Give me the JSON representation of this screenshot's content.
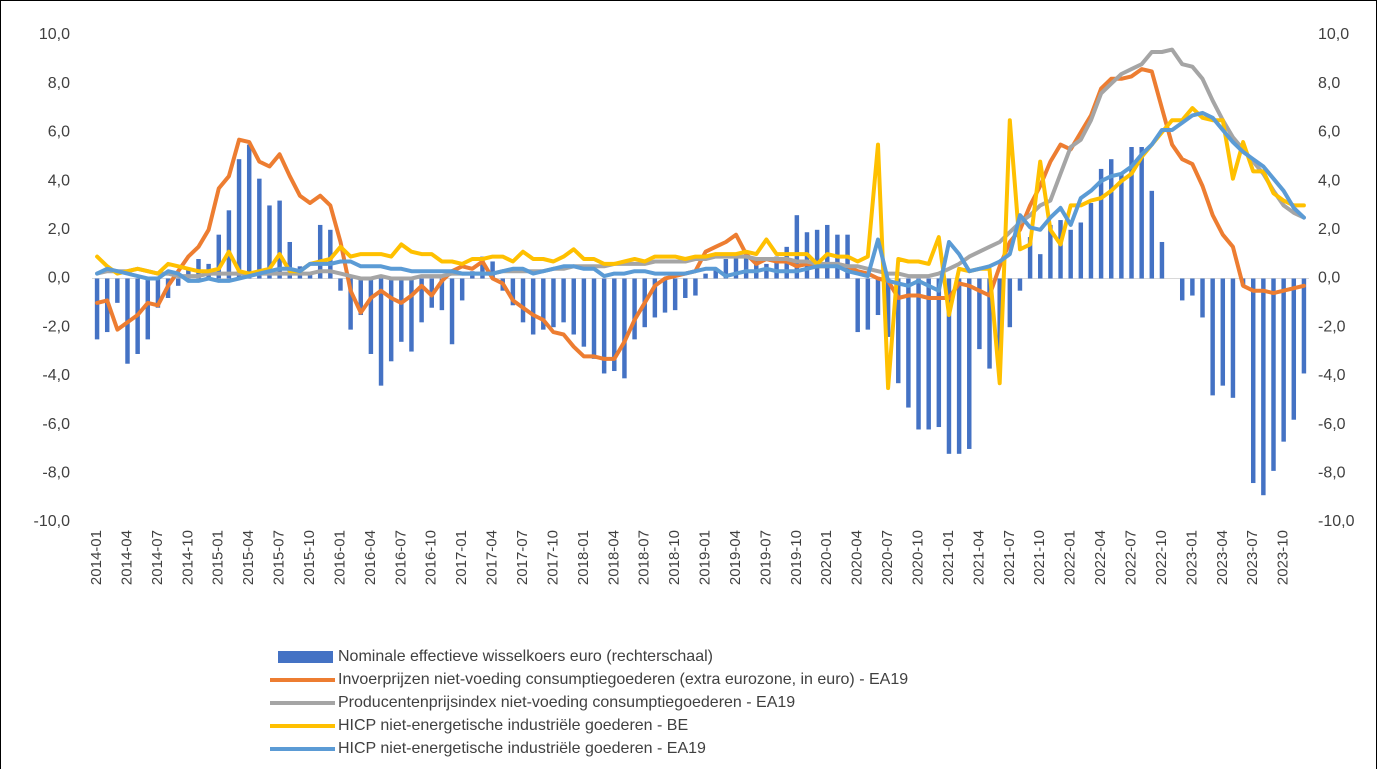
{
  "chart_data": {
    "type": "bar-line",
    "categories": [
      "2014-01",
      null,
      null,
      "2014-04",
      null,
      null,
      "2014-07",
      null,
      null,
      "2014-10",
      null,
      null,
      "2015-01",
      null,
      null,
      "2015-04",
      null,
      null,
      "2015-07",
      null,
      null,
      "2015-10",
      null,
      null,
      "2016-01",
      null,
      null,
      "2016-04",
      null,
      null,
      "2016-07",
      null,
      null,
      "2016-10",
      null,
      null,
      "2017-01",
      null,
      null,
      "2017-04",
      null,
      null,
      "2017-07",
      null,
      null,
      "2017-10",
      null,
      null,
      "2018-01",
      null,
      null,
      "2018-04",
      null,
      null,
      "2018-07",
      null,
      null,
      "2018-10",
      null,
      null,
      "2019-01",
      null,
      null,
      "2019-04",
      null,
      null,
      "2019-07",
      null,
      null,
      "2019-10",
      null,
      null,
      "2020-01",
      null,
      null,
      "2020-04",
      null,
      null,
      "2020-07",
      null,
      null,
      "2020-10",
      null,
      null,
      "2021-01",
      null,
      null,
      "2021-04",
      null,
      null,
      "2021-07",
      null,
      null,
      "2021-10",
      null,
      null,
      "2022-01",
      null,
      null,
      "2022-04",
      null,
      null,
      "2022-07",
      null,
      null,
      "2022-10",
      null,
      null,
      "2023-01",
      null,
      null,
      "2023-04",
      null,
      null,
      "2023-07",
      null,
      null,
      "2023-10",
      null,
      null
    ],
    "series": [
      {
        "name": "Nominale effectieve wisselkoers euro (rechterschaal)",
        "kind": "bar",
        "axis": "y2",
        "color": "#4472c4",
        "values": [
          -2.5,
          -2.2,
          -1.0,
          -3.5,
          -3.1,
          -2.5,
          -1.2,
          -0.8,
          -0.3,
          0.4,
          0.8,
          0.6,
          1.8,
          2.8,
          4.9,
          5.5,
          4.1,
          3.0,
          3.2,
          1.5,
          0.5,
          0.2,
          2.2,
          2.0,
          -0.5,
          -2.1,
          -1.5,
          -3.1,
          -4.4,
          -3.4,
          -2.6,
          -3.0,
          -1.8,
          -1.2,
          -1.3,
          -2.7,
          -0.9,
          0.3,
          0.9,
          0.7,
          -0.5,
          -1.1,
          -1.8,
          -2.3,
          -2.1,
          -2.0,
          -1.8,
          -2.3,
          -2.8,
          -3.3,
          -3.9,
          -3.8,
          -4.1,
          -2.5,
          -2.0,
          -1.6,
          -1.4,
          -1.3,
          -0.8,
          -0.7,
          0.2,
          0.4,
          0.8,
          1.0,
          1.1,
          0.8,
          0.6,
          0.9,
          1.3,
          2.6,
          1.9,
          2.0,
          2.2,
          1.8,
          1.8,
          -2.2,
          -2.1,
          -1.5,
          -2.4,
          -4.3,
          -5.3,
          -6.2,
          -6.2,
          -6.1,
          -7.2,
          -7.2,
          -7.0,
          -2.9,
          -3.7,
          -4.0,
          -2.0,
          -0.5,
          1.7,
          1.0,
          2.2,
          2.4,
          2.0,
          2.3,
          3.1,
          4.5,
          4.9,
          4.3,
          5.4,
          5.4,
          3.6,
          1.5,
          0.0,
          -0.9,
          -0.7,
          -1.6,
          -4.8,
          -4.4,
          -4.9,
          -0.3,
          -8.4,
          -8.9,
          -7.9,
          -6.7,
          -5.8,
          -3.9
        ]
      },
      {
        "name": "Invoerprijzen niet-voeding consumptiegoederen (extra eurozone, in euro) - EA19",
        "kind": "line",
        "color": "#ed7d31",
        "values": [
          -1.0,
          -0.9,
          -2.1,
          -1.8,
          -1.5,
          -1.0,
          -1.1,
          -0.3,
          0.3,
          0.9,
          1.3,
          2.0,
          3.7,
          4.2,
          5.7,
          5.6,
          4.8,
          4.6,
          5.1,
          4.2,
          3.4,
          3.1,
          3.4,
          3.0,
          1.5,
          -0.5,
          -1.4,
          -0.8,
          -0.5,
          -0.8,
          -1.0,
          -0.7,
          -0.3,
          -0.7,
          -0.1,
          0.3,
          0.5,
          0.4,
          0.7,
          0.0,
          -0.2,
          -0.9,
          -1.2,
          -1.5,
          -1.7,
          -2.2,
          -2.3,
          -2.8,
          -3.2,
          -3.2,
          -3.3,
          -3.3,
          -2.6,
          -1.7,
          -1.0,
          -0.3,
          0.0,
          0.1,
          0.2,
          0.3,
          1.1,
          1.3,
          1.5,
          1.8,
          1.0,
          0.6,
          0.8,
          0.7,
          0.7,
          0.5,
          0.6,
          0.5,
          0.5,
          0.6,
          0.5,
          0.3,
          0.2,
          0.0,
          -0.1,
          -0.8,
          -0.7,
          -0.7,
          -0.8,
          -0.8,
          -0.8,
          -0.2,
          -0.3,
          -0.5,
          -0.7,
          0.5,
          1.5,
          2.0,
          3.0,
          3.8,
          4.8,
          5.5,
          5.3,
          6.0,
          6.7,
          7.8,
          8.2,
          8.2,
          8.3,
          8.6,
          8.5,
          7.0,
          5.5,
          4.9,
          4.7,
          3.8,
          2.6,
          1.8,
          1.3,
          -0.3,
          -0.5,
          -0.5,
          -0.6,
          -0.5,
          -0.4,
          -0.3
        ]
      },
      {
        "name": "Producentenprijsindex niet-voeding consumptiegoederen - EA19",
        "kind": "line",
        "color": "#a5a5a5",
        "values": [
          0.2,
          0.3,
          0.3,
          0.3,
          0.4,
          0.3,
          0.2,
          0.2,
          0.1,
          0.1,
          0.1,
          0.2,
          0.2,
          0.2,
          0.2,
          0.2,
          0.2,
          0.2,
          0.2,
          0.2,
          0.2,
          0.2,
          0.3,
          0.3,
          0.2,
          0.1,
          0.0,
          0.0,
          0.1,
          0.0,
          0.0,
          0.0,
          0.1,
          0.1,
          0.1,
          0.2,
          0.2,
          0.2,
          0.2,
          0.2,
          0.3,
          0.3,
          0.3,
          0.3,
          0.3,
          0.4,
          0.4,
          0.5,
          0.5,
          0.5,
          0.5,
          0.6,
          0.6,
          0.6,
          0.6,
          0.7,
          0.7,
          0.7,
          0.7,
          0.8,
          0.8,
          0.9,
          0.9,
          0.9,
          0.9,
          0.8,
          0.8,
          0.8,
          0.8,
          0.7,
          0.7,
          0.6,
          0.6,
          0.6,
          0.5,
          0.5,
          0.4,
          0.3,
          0.2,
          0.2,
          0.1,
          0.1,
          0.1,
          0.2,
          0.4,
          0.6,
          0.9,
          1.1,
          1.3,
          1.5,
          1.9,
          2.3,
          2.6,
          3.0,
          3.2,
          4.3,
          5.4,
          5.7,
          6.5,
          7.6,
          8.0,
          8.4,
          8.6,
          8.8,
          9.3,
          9.3,
          9.4,
          8.8,
          8.7,
          8.2,
          7.3,
          6.5,
          5.8,
          5.3,
          4.8,
          4.3,
          3.6,
          3.0,
          2.7,
          2.5
        ]
      },
      {
        "name": "HICP niet-energetische industriële goederen - BE",
        "kind": "line",
        "color": "#ffc000",
        "values": [
          0.9,
          0.5,
          0.2,
          0.3,
          0.4,
          0.3,
          0.2,
          0.6,
          0.5,
          0.4,
          0.3,
          0.3,
          0.4,
          1.1,
          0.3,
          0.2,
          0.3,
          0.4,
          1.0,
          0.3,
          0.3,
          0.6,
          0.7,
          0.8,
          1.3,
          0.9,
          1.0,
          1.0,
          1.0,
          0.9,
          1.4,
          1.1,
          1.0,
          1.0,
          0.7,
          0.7,
          0.6,
          0.8,
          0.8,
          0.9,
          0.9,
          0.7,
          1.1,
          0.8,
          0.8,
          0.7,
          0.9,
          1.2,
          0.8,
          0.8,
          0.6,
          0.6,
          0.7,
          0.8,
          0.7,
          0.9,
          0.9,
          0.9,
          0.8,
          0.9,
          0.9,
          1.0,
          1.0,
          1.0,
          1.1,
          1.0,
          1.6,
          1.0,
          1.0,
          1.0,
          1.0,
          0.6,
          1.0,
          0.9,
          0.9,
          0.7,
          0.9,
          5.5,
          -4.5,
          0.8,
          0.7,
          0.7,
          0.6,
          1.7,
          -1.5,
          0.4,
          0.3,
          0.4,
          0.4,
          -4.3,
          6.5,
          1.2,
          1.4,
          4.8,
          2.0,
          1.4,
          3.0,
          3.0,
          3.2,
          3.3,
          3.6,
          4.0,
          4.3,
          5.0,
          5.5,
          6.0,
          6.5,
          6.5,
          7.0,
          6.6,
          6.5,
          6.5,
          4.1,
          5.6,
          4.4,
          4.4,
          3.5,
          3.2,
          3.0,
          3.0
        ]
      },
      {
        "name": "HICP niet-energetische industriële goederen - EA19",
        "kind": "line",
        "color": "#5b9bd5",
        "values": [
          0.2,
          0.4,
          0.3,
          0.2,
          0.1,
          0.0,
          0.0,
          0.3,
          0.2,
          -0.1,
          -0.1,
          0.0,
          -0.1,
          -0.1,
          0.0,
          0.1,
          0.2,
          0.3,
          0.4,
          0.4,
          0.3,
          0.6,
          0.6,
          0.6,
          0.7,
          0.7,
          0.5,
          0.5,
          0.5,
          0.4,
          0.4,
          0.3,
          0.3,
          0.3,
          0.3,
          0.3,
          0.2,
          0.2,
          0.2,
          0.2,
          0.3,
          0.4,
          0.4,
          0.2,
          0.3,
          0.4,
          0.5,
          0.5,
          0.4,
          0.4,
          0.1,
          0.2,
          0.2,
          0.3,
          0.3,
          0.2,
          0.2,
          0.2,
          0.2,
          0.3,
          0.4,
          0.4,
          0.1,
          0.2,
          0.3,
          0.3,
          0.4,
          0.3,
          0.3,
          0.3,
          0.4,
          0.5,
          0.5,
          0.5,
          0.3,
          0.2,
          0.1,
          1.6,
          -0.1,
          -0.2,
          -0.3,
          -0.1,
          -0.3,
          -0.5,
          1.5,
          1.0,
          0.3,
          0.4,
          0.5,
          0.7,
          1.0,
          2.6,
          2.1,
          2.0,
          2.5,
          2.9,
          2.2,
          3.3,
          3.6,
          4.0,
          4.2,
          4.3,
          4.6,
          5.1,
          5.5,
          6.1,
          6.1,
          6.4,
          6.7,
          6.8,
          6.6,
          6.1,
          5.6,
          5.2,
          4.9,
          4.6,
          4.1,
          3.6,
          2.9,
          2.5
        ]
      }
    ],
    "ylim": [
      -10,
      10
    ],
    "yticks": [
      {
        "value": -10,
        "label": "-10,0"
      },
      {
        "value": -8,
        "label": "-8,0"
      },
      {
        "value": -6,
        "label": "-6,0"
      },
      {
        "value": -4,
        "label": "-4,0"
      },
      {
        "value": -2,
        "label": "-2,0"
      },
      {
        "value": 0,
        "label": "0,0"
      },
      {
        "value": 2,
        "label": "2,0"
      },
      {
        "value": 4,
        "label": "4,0"
      },
      {
        "value": 6,
        "label": "6,0"
      },
      {
        "value": 8,
        "label": "8,0"
      },
      {
        "value": 10,
        "label": "10,0"
      }
    ],
    "y2lim": [
      -10,
      10
    ],
    "y2ticks": [
      {
        "value": -10,
        "label": "-10,0"
      },
      {
        "value": -8,
        "label": "-8,0"
      },
      {
        "value": -6,
        "label": "-6,0"
      },
      {
        "value": -4,
        "label": "-4,0"
      },
      {
        "value": -2,
        "label": "-2,0"
      },
      {
        "value": 0,
        "label": "0,0"
      },
      {
        "value": 2,
        "label": "2,0"
      },
      {
        "value": 4,
        "label": "4,0"
      },
      {
        "value": 6,
        "label": "6,0"
      },
      {
        "value": 8,
        "label": "8,0"
      },
      {
        "value": 10,
        "label": "10,0"
      }
    ],
    "grid": false,
    "legend": "bottom"
  }
}
